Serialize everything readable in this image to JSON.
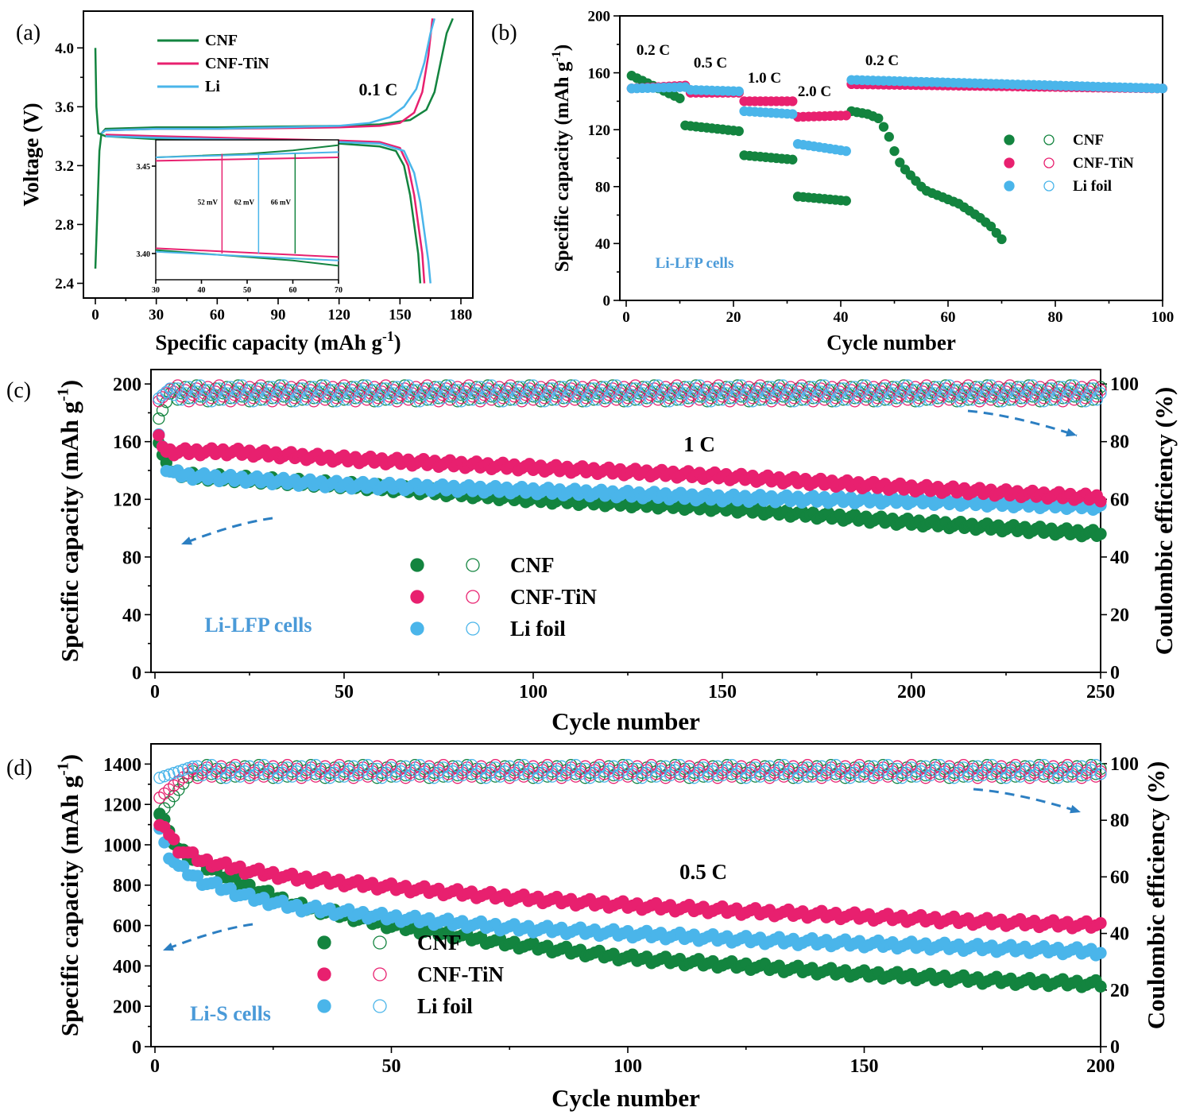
{
  "colors": {
    "CNF": "#13843f",
    "CNF-TiN": "#e8206f",
    "Li": "#4ab5ea"
  },
  "chart_data": [
    {
      "panel": "(a)",
      "type": "line",
      "xlabel": "Specific capacity (mAh g-1)",
      "ylabel": "Voltage (V)",
      "xlim": [
        0,
        180
      ],
      "ylim": [
        2.3,
        4.25
      ],
      "xticks": [
        "0",
        "30",
        "60",
        "90",
        "120",
        "150",
        "180"
      ],
      "yticks": [
        "2.4",
        "2.8",
        "3.2",
        "3.6",
        "4.0"
      ],
      "rate_label": "0.1 C",
      "legend": [
        "CNF",
        "CNF-TiN",
        "Li"
      ],
      "series": [
        {
          "name": "CNF",
          "charge": [
            [
              0,
              2.5
            ],
            [
              1,
              2.9
            ],
            [
              2,
              3.3
            ],
            [
              3,
              3.42
            ],
            [
              5,
              3.45
            ],
            [
              30,
              3.46
            ],
            [
              60,
              3.46
            ],
            [
              90,
              3.465
            ],
            [
              120,
              3.47
            ],
            [
              140,
              3.48
            ],
            [
              155,
              3.51
            ],
            [
              163,
              3.58
            ],
            [
              167,
              3.7
            ],
            [
              170,
              3.9
            ],
            [
              173,
              4.1
            ],
            [
              176,
              4.2
            ]
          ],
          "discharge": [
            [
              0,
              4.0
            ],
            [
              0.5,
              3.6
            ],
            [
              1.5,
              3.42
            ],
            [
              5,
              3.4
            ],
            [
              30,
              3.38
            ],
            [
              60,
              3.37
            ],
            [
              90,
              3.36
            ],
            [
              120,
              3.35
            ],
            [
              140,
              3.33
            ],
            [
              148,
              3.3
            ],
            [
              152,
              3.2
            ],
            [
              155,
              3.0
            ],
            [
              157,
              2.8
            ],
            [
              159,
              2.6
            ],
            [
              160,
              2.4
            ]
          ]
        },
        {
          "name": "CNF-TiN",
          "charge": [
            [
              3,
              3.42
            ],
            [
              5,
              3.44
            ],
            [
              30,
              3.45
            ],
            [
              60,
              3.45
            ],
            [
              90,
              3.455
            ],
            [
              120,
              3.46
            ],
            [
              140,
              3.47
            ],
            [
              150,
              3.49
            ],
            [
              157,
              3.56
            ],
            [
              161,
              3.7
            ],
            [
              164,
              3.95
            ],
            [
              166,
              4.2
            ]
          ],
          "discharge": [
            [
              5,
              3.41
            ],
            [
              30,
              3.4
            ],
            [
              60,
              3.39
            ],
            [
              90,
              3.38
            ],
            [
              120,
              3.37
            ],
            [
              140,
              3.36
            ],
            [
              150,
              3.32
            ],
            [
              154,
              3.2
            ],
            [
              157,
              3.0
            ],
            [
              159,
              2.8
            ],
            [
              161,
              2.6
            ],
            [
              162,
              2.4
            ]
          ]
        },
        {
          "name": "Li",
          "charge": [
            [
              3,
              3.42
            ],
            [
              5,
              3.44
            ],
            [
              30,
              3.45
            ],
            [
              60,
              3.45
            ],
            [
              90,
              3.46
            ],
            [
              120,
              3.47
            ],
            [
              135,
              3.49
            ],
            [
              145,
              3.53
            ],
            [
              152,
              3.6
            ],
            [
              158,
              3.72
            ],
            [
              162,
              3.9
            ],
            [
              165,
              4.1
            ],
            [
              167,
              4.2
            ]
          ],
          "discharge": [
            [
              5,
              3.4
            ],
            [
              30,
              3.39
            ],
            [
              60,
              3.38
            ],
            [
              90,
              3.37
            ],
            [
              120,
              3.36
            ],
            [
              140,
              3.35
            ],
            [
              152,
              3.3
            ],
            [
              157,
              3.15
            ],
            [
              160,
              2.95
            ],
            [
              162,
              2.75
            ],
            [
              164,
              2.55
            ],
            [
              165,
              2.4
            ]
          ]
        }
      ],
      "inset": {
        "xlim": [
          30,
          70
        ],
        "ylim": [
          3.385,
          3.465
        ],
        "xticks": [
          "30",
          "40",
          "50",
          "60",
          "70"
        ],
        "yticks": [
          "3.40",
          "3.45"
        ],
        "annotations": [
          "52 mV",
          "62 mV",
          "66 mV"
        ]
      }
    },
    {
      "panel": "(b)",
      "type": "scatter",
      "xlabel": "Cycle number",
      "ylabel": "Specific capacity (mAh g-1)",
      "xlim": [
        0,
        100
      ],
      "ylim": [
        0,
        200
      ],
      "xticks": [
        "0",
        "20",
        "40",
        "60",
        "80",
        "100"
      ],
      "yticks": [
        "0",
        "40",
        "80",
        "120",
        "160",
        "200"
      ],
      "rate_labels": [
        "0.2 C",
        "0.5 C",
        "1.0 C",
        "2.0 C",
        "0.2 C"
      ],
      "cell_label": "Li-LFP cells",
      "legend": [
        "CNF",
        "CNF-TiN",
        "Li foil"
      ],
      "series": [
        {
          "name": "CNF",
          "segments": [
            [
              1,
              10,
              158,
              142
            ],
            [
              11,
              21,
              123,
              119
            ],
            [
              22,
              31,
              102,
              99
            ],
            [
              32,
              41,
              73,
              70
            ]
          ],
          "recovery": [
            [
              42,
              133
            ],
            [
              45,
              131
            ],
            [
              47,
              128
            ],
            [
              48,
              122
            ],
            [
              49,
              115
            ],
            [
              50,
              105
            ],
            [
              51,
              97
            ],
            [
              52,
              92
            ],
            [
              53,
              88
            ],
            [
              54,
              84
            ],
            [
              55,
              80
            ],
            [
              56,
              77
            ],
            [
              58,
              74
            ],
            [
              60,
              71
            ],
            [
              62,
              68
            ],
            [
              64,
              63
            ],
            [
              66,
              58
            ],
            [
              68,
              52
            ],
            [
              70,
              43
            ]
          ]
        },
        {
          "name": "CNF-TiN",
          "segments": [
            [
              1,
              11,
              149,
              151
            ],
            [
              12,
              21,
              146,
              146
            ],
            [
              22,
              31,
              140,
              140
            ],
            [
              32,
              41,
              129,
              130
            ],
            [
              42,
              100,
              152,
              149
            ]
          ]
        },
        {
          "name": "Li foil",
          "segments": [
            [
              1,
              11,
              149,
              150
            ],
            [
              12,
              21,
              148,
              147
            ],
            [
              22,
              31,
              133,
              131
            ],
            [
              32,
              41,
              110,
              105
            ],
            [
              42,
              100,
              155,
              149
            ]
          ]
        }
      ]
    },
    {
      "panel": "(c)",
      "type": "scatter",
      "xlabel": "Cycle number",
      "ylabel": "Specific capacity (mAh g-1)",
      "y2label": "Coulombic efficiency (%)",
      "xlim": [
        0,
        250
      ],
      "ylim": [
        0,
        210
      ],
      "y2lim": [
        0,
        105
      ],
      "xticks": [
        "0",
        "50",
        "100",
        "150",
        "200",
        "250"
      ],
      "yticks": [
        "0",
        "40",
        "80",
        "120",
        "160",
        "200"
      ],
      "y2ticks": [
        "0",
        "20",
        "40",
        "60",
        "80",
        "100"
      ],
      "rate_label": "1 C",
      "cell_label": "Li-LFP cells",
      "legend": [
        "CNF",
        "CNF-TiN",
        "Li foil"
      ],
      "series": [
        {
          "name": "CNF",
          "capacity": [
            [
              1,
              160
            ],
            [
              2,
              150
            ],
            [
              3,
              143
            ],
            [
              5,
              139
            ],
            [
              10,
              136
            ],
            [
              50,
              130
            ],
            [
              100,
              120
            ],
            [
              150,
              114
            ],
            [
              200,
              104
            ],
            [
              250,
              96
            ]
          ],
          "ce_start": 88
        },
        {
          "name": "CNF-TiN",
          "capacity": [
            [
              1,
              162
            ],
            [
              2,
              158
            ],
            [
              3,
              153
            ],
            [
              10,
              153
            ],
            [
              20,
              153
            ],
            [
              50,
              148
            ],
            [
              100,
              142
            ],
            [
              150,
              136
            ],
            [
              200,
              128
            ],
            [
              250,
              121
            ]
          ],
          "ce_start": 94
        },
        {
          "name": "Li foil",
          "capacity": [
            [
              1,
              165
            ],
            [
              2,
              155
            ],
            [
              3,
              142
            ],
            [
              5,
              138
            ],
            [
              10,
              136
            ],
            [
              50,
              130
            ],
            [
              100,
              126
            ],
            [
              150,
              121
            ],
            [
              200,
              119
            ],
            [
              250,
              115
            ]
          ],
          "ce_start": 95
        }
      ]
    },
    {
      "panel": "(d)",
      "type": "scatter",
      "xlabel": "Cycle number",
      "ylabel": "Specific capacity (mAh g-1)",
      "y2label": "Coulombic efficiency (%)",
      "xlim": [
        0,
        200
      ],
      "ylim": [
        0,
        1500
      ],
      "y2lim": [
        0,
        107
      ],
      "xticks": [
        "0",
        "50",
        "100",
        "150",
        "200"
      ],
      "yticks": [
        "0",
        "200",
        "400",
        "600",
        "800",
        "1000",
        "1200",
        "1400"
      ],
      "y2ticks": [
        "0",
        "20",
        "40",
        "60",
        "80",
        "100"
      ],
      "rate_label": "0.5 C",
      "cell_label": "Li-S cells",
      "legend": [
        "CNF",
        "CNF-TiN",
        "Li foil"
      ],
      "series": [
        {
          "name": "CNF",
          "capacity": [
            [
              1,
              1160
            ],
            [
              2,
              1120
            ],
            [
              3,
              1050
            ],
            [
              5,
              980
            ],
            [
              10,
              900
            ],
            [
              20,
              790
            ],
            [
              30,
              700
            ],
            [
              50,
              600
            ],
            [
              75,
              510
            ],
            [
              100,
              440
            ],
            [
              125,
              400
            ],
            [
              150,
              360
            ],
            [
              175,
              330
            ],
            [
              200,
              310
            ]
          ],
          "ce_start": 82
        },
        {
          "name": "CNF-TiN",
          "capacity": [
            [
              1,
              1080
            ],
            [
              2,
              1100
            ],
            [
              3,
              1050
            ],
            [
              5,
              980
            ],
            [
              10,
              920
            ],
            [
              20,
              870
            ],
            [
              30,
              835
            ],
            [
              50,
              790
            ],
            [
              75,
              740
            ],
            [
              100,
              700
            ],
            [
              125,
              670
            ],
            [
              150,
              645
            ],
            [
              175,
              620
            ],
            [
              200,
              600
            ]
          ],
          "ce_start": 88
        },
        {
          "name": "Li foil",
          "capacity": [
            [
              1,
              1080
            ],
            [
              2,
              1000
            ],
            [
              3,
              950
            ],
            [
              5,
              890
            ],
            [
              10,
              820
            ],
            [
              20,
              740
            ],
            [
              30,
              690
            ],
            [
              50,
              640
            ],
            [
              75,
              590
            ],
            [
              100,
              560
            ],
            [
              125,
              530
            ],
            [
              150,
              510
            ],
            [
              175,
              490
            ],
            [
              200,
              470
            ]
          ],
          "ce_start": 95
        }
      ]
    }
  ]
}
